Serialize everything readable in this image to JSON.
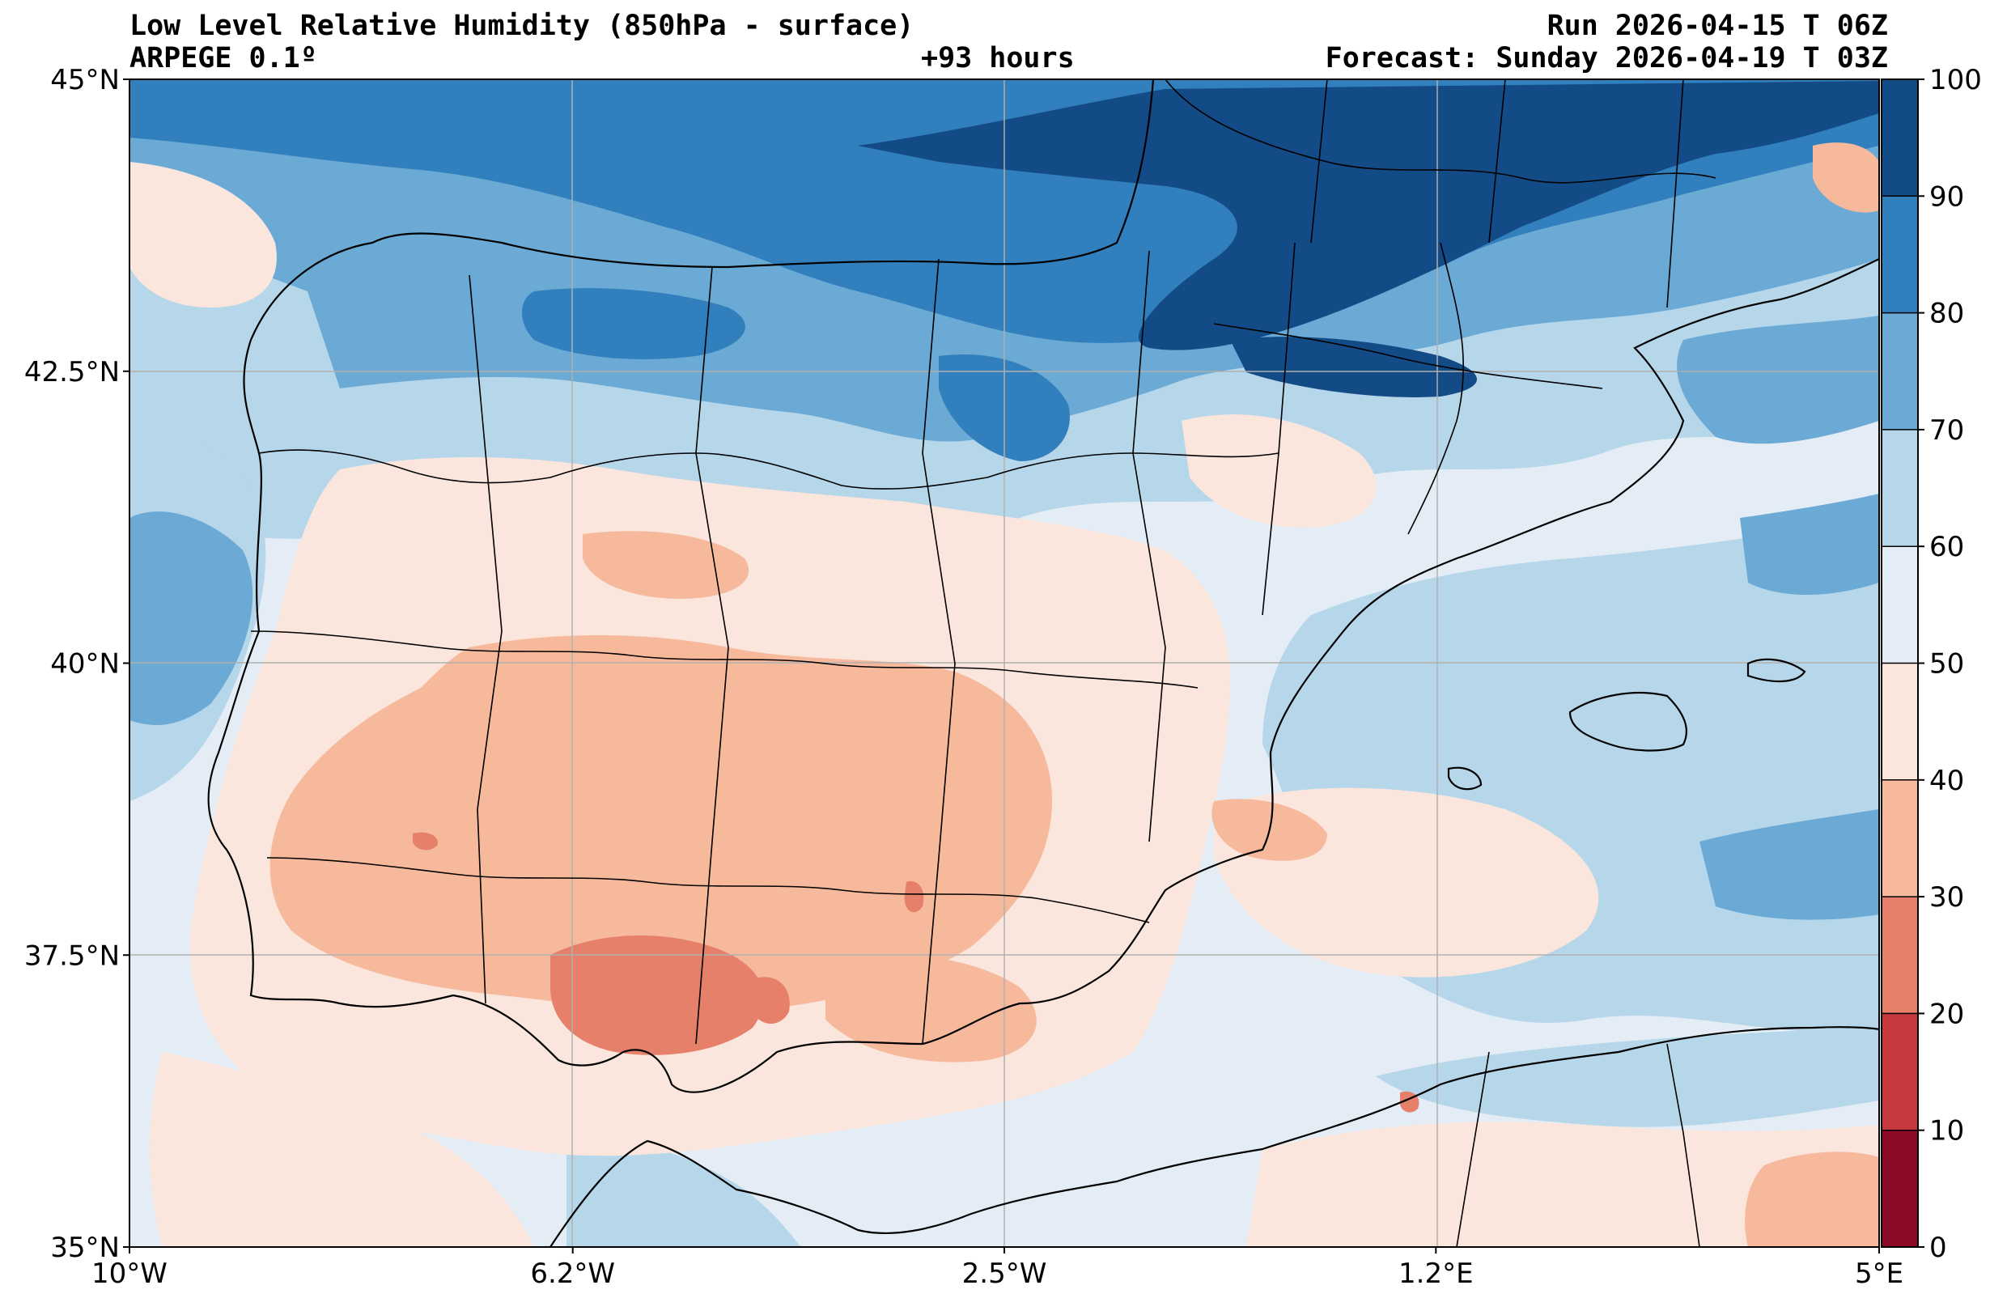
{
  "header": {
    "title": "Low Level Relative Humidity (850hPa - surface)",
    "model": "ARPEGE 0.1º",
    "run": "Run 2026-04-15 T 06Z",
    "lead_time": "+93 hours",
    "forecast": "Forecast: Sunday 2026-04-19 T 03Z"
  },
  "map": {
    "lon_range": [
      -10,
      5
    ],
    "lat_range": [
      35,
      45
    ],
    "lon_ticks": [
      {
        "value": -10,
        "label": "10°W"
      },
      {
        "value": -6.2,
        "label": "6.2°W"
      },
      {
        "value": -2.5,
        "label": "2.5°W"
      },
      {
        "value": 1.2,
        "label": "1.2°E"
      },
      {
        "value": 5,
        "label": "5°E"
      }
    ],
    "lat_ticks": [
      {
        "value": 45,
        "label": "45°N"
      },
      {
        "value": 42.5,
        "label": "42.5°N"
      },
      {
        "value": 40,
        "label": "40°N"
      },
      {
        "value": 37.5,
        "label": "37.5°N"
      },
      {
        "value": 35,
        "label": "35°N"
      }
    ]
  },
  "colorbar": {
    "levels": [
      0,
      10,
      20,
      30,
      40,
      50,
      60,
      70,
      80,
      90,
      100
    ],
    "labels": [
      "0",
      "10",
      "20",
      "30",
      "40",
      "50",
      "60",
      "70",
      "80",
      "90",
      "100"
    ],
    "colors": [
      "#8b0a26",
      "#c63a3d",
      "#e6806a",
      "#f7b99c",
      "#fae6dd",
      "#e4edf5",
      "#b6d6ea",
      "#6aaad4",
      "#317fbd",
      "#134b87"
    ]
  }
}
